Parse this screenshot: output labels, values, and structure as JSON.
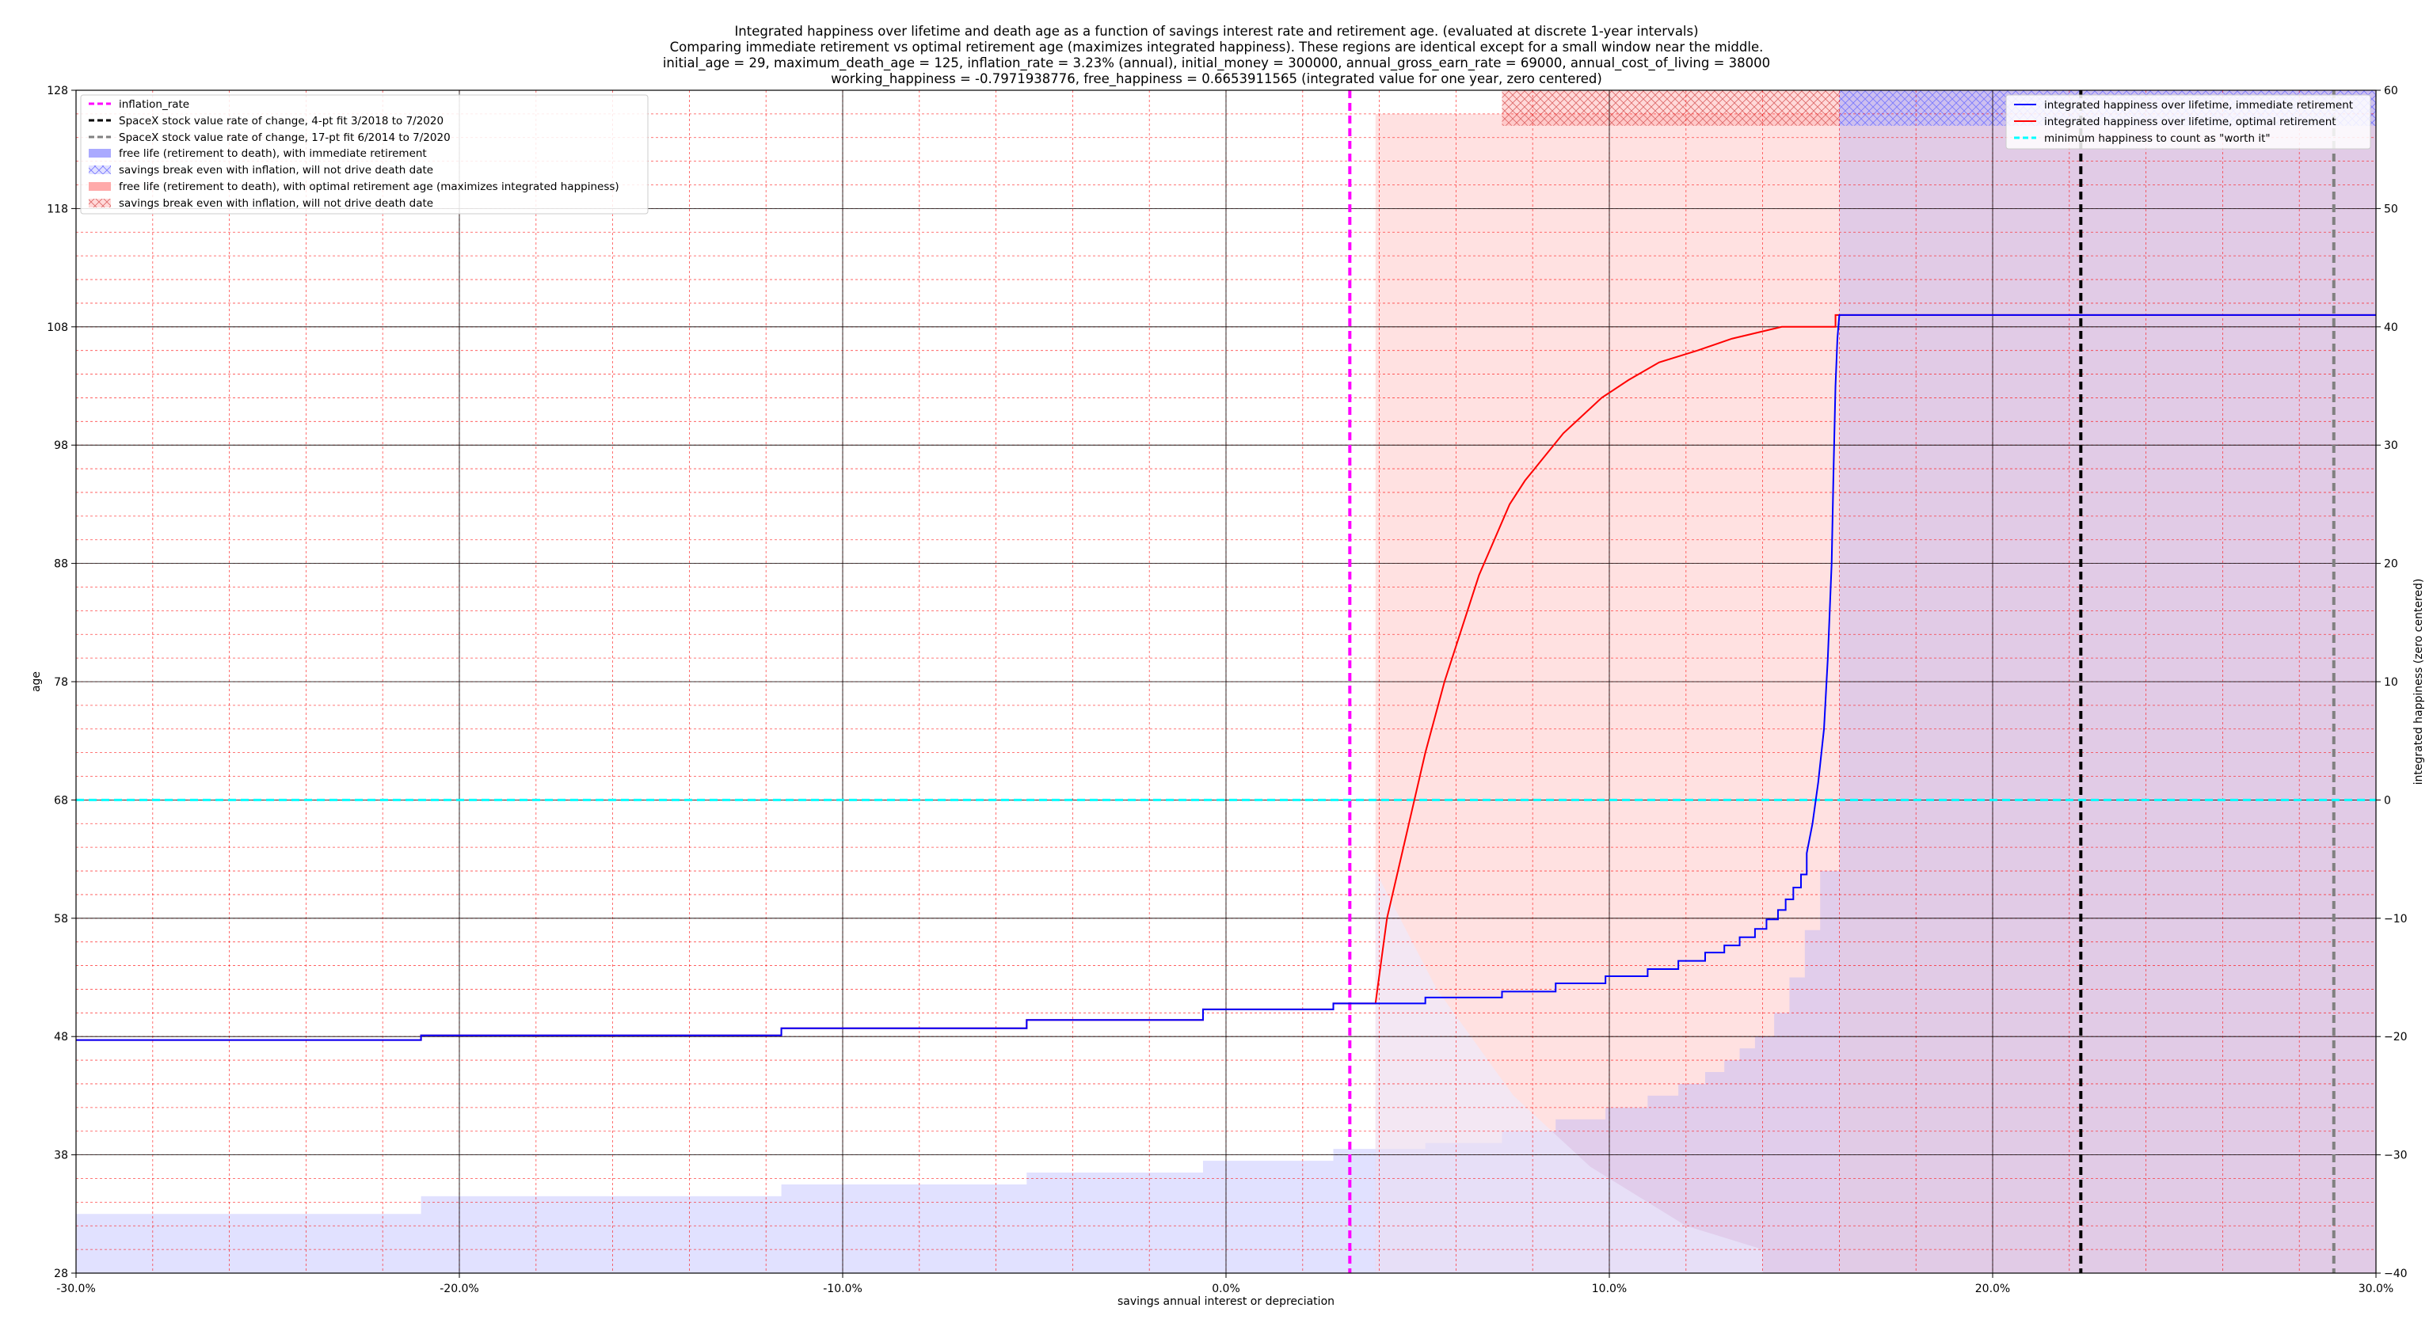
{
  "chart_data": {
    "type": "line",
    "title_lines": [
      "Integrated happiness over lifetime and death age as a function of savings interest rate and retirement age. (evaluated at discrete 1-year intervals)",
      "Comparing immediate retirement vs optimal retirement age (maximizes integrated happiness). These regions are identical except for a small window near the middle.",
      "initial_age = 29, maximum_death_age = 125, inflation_rate = 3.23% (annual), initial_money = 300000, annual_gross_earn_rate = 69000, annual_cost_of_living = 38000",
      "working_happiness = -0.7971938776, free_happiness = 0.6653911565 (integrated value for one year, zero centered)"
    ],
    "xlabel": "savings annual interest or depreciation",
    "ylabel_left": "age",
    "ylabel_right": "integrated happiness (zero centered)",
    "xlim": [
      -30,
      30
    ],
    "ylim_left": [
      28,
      128
    ],
    "ylim_right": [
      -40,
      60
    ],
    "x_ticks": [
      "-30.0%",
      "-20.0%",
      "-10.0%",
      "0.0%",
      "10.0%",
      "20.0%",
      "30.0%"
    ],
    "x_tick_values": [
      -30,
      -20,
      -10,
      0,
      10,
      20,
      30
    ],
    "y_left_ticks": [
      "28",
      "38",
      "48",
      "58",
      "68",
      "78",
      "88",
      "98",
      "108",
      "118",
      "128"
    ],
    "y_right_ticks": [
      "−40",
      "−30",
      "−20",
      "−10",
      "0",
      "10",
      "20",
      "30",
      "40",
      "50",
      "60"
    ],
    "grid": true,
    "vertical_lines": [
      {
        "name": "inflation_rate",
        "x": 3.23,
        "color": "#ff00ff",
        "style": "dashed"
      },
      {
        "name": "SpaceX stock value rate of change, 4-pt fit 3/2018 to 7/2020",
        "x": 22.3,
        "color": "#000000",
        "style": "dashed"
      },
      {
        "name": "SpaceX stock value rate of change, 17-pt fit 6/2014 to 7/2020",
        "x": 28.9,
        "color": "#808080",
        "style": "dashed"
      }
    ],
    "horizontal_lines": [
      {
        "name": "minimum happiness to count as \"worth it\"",
        "y_right": 0,
        "color": "#00ffff",
        "style": "dashed"
      }
    ],
    "regions": [
      {
        "name": "free life (retirement to death), with immediate retirement",
        "color": "#aaaaff"
      },
      {
        "name": "savings break even with inflation, will not drive death date",
        "color": "#aaaaff",
        "hatch": true
      },
      {
        "name": "free life (retirement to death), with optimal retirement age (maximizes integrated happiness)",
        "color": "#ffaaaa"
      },
      {
        "name": "savings break even with inflation, will not drive death date",
        "color": "#ffaaaa",
        "hatch": true
      }
    ],
    "series": [
      {
        "name": "integrated happiness over lifetime, immediate retirement",
        "color": "#0000ff",
        "x": [
          -30,
          -21,
          -21,
          -11.6,
          -11.6,
          -5.2,
          -5.2,
          -0.6,
          -0.6,
          2.8,
          2.8,
          5.2,
          5.2,
          7.2,
          7.2,
          8.6,
          8.6,
          9.9,
          9.9,
          11.0,
          11.0,
          11.8,
          11.8,
          12.5,
          12.5,
          13.0,
          13.0,
          13.4,
          13.4,
          13.8,
          13.8,
          14.1,
          14.1,
          14.4,
          14.4,
          14.6,
          14.6,
          14.8,
          14.8,
          15.0,
          15.0,
          15.15,
          15.15,
          15.3,
          15.45,
          15.6,
          15.7,
          15.8,
          15.85,
          15.9,
          15.95,
          16.0,
          30
        ],
        "y_right": [
          -20.3,
          -20.3,
          -19.9,
          -19.9,
          -19.3,
          -19.3,
          -18.6,
          -18.6,
          -17.7,
          -17.7,
          -17.2,
          -17.2,
          -16.7,
          -16.7,
          -16.2,
          -16.2,
          -15.5,
          -15.5,
          -14.9,
          -14.9,
          -14.3,
          -14.3,
          -13.6,
          -13.6,
          -12.9,
          -12.9,
          -12.3,
          -12.3,
          -11.6,
          -11.6,
          -10.9,
          -10.9,
          -10.1,
          -10.1,
          -9.3,
          -9.3,
          -8.4,
          -8.4,
          -7.4,
          -7.4,
          -6.3,
          -6.3,
          -4.5,
          -2.0,
          1.5,
          6.0,
          12.0,
          20.0,
          28.0,
          35.0,
          39.0,
          41.0,
          41.0
        ]
      },
      {
        "name": "integrated happiness over lifetime, optimal retirement",
        "color": "#ff0000",
        "x": [
          -30,
          -21,
          -21,
          -11.6,
          -11.6,
          -5.2,
          -5.2,
          -0.6,
          -0.6,
          2.8,
          2.8,
          3.9,
          4.2,
          4.7,
          5.2,
          5.7,
          6.2,
          6.6,
          7.0,
          7.4,
          7.8,
          8.3,
          8.8,
          9.3,
          9.8,
          10.5,
          11.3,
          12.3,
          13.2,
          14.5,
          15.9,
          15.9,
          30
        ],
        "y_right": [
          -20.3,
          -20.3,
          -19.9,
          -19.9,
          -19.3,
          -19.3,
          -18.6,
          -18.6,
          -17.7,
          -17.7,
          -17.2,
          -17.2,
          -10.0,
          -3.0,
          4.0,
          10.0,
          15.0,
          19.0,
          22.0,
          25.0,
          27.0,
          29.0,
          31.0,
          32.5,
          34.0,
          35.5,
          37.0,
          38.0,
          39.0,
          40.0,
          40.0,
          41.0,
          41.0
        ]
      }
    ],
    "legend_left_entries": [
      "inflation_rate",
      "SpaceX stock value rate of change, 4-pt fit 3/2018 to 7/2020",
      "SpaceX stock value rate of change, 17-pt fit 6/2014 to 7/2020",
      "free life (retirement to death), with immediate retirement",
      "savings break even with inflation, will not drive death date",
      "free life (retirement to death), with optimal retirement age (maximizes integrated happiness)",
      "savings break even with inflation, will not drive death date"
    ],
    "legend_right_entries": [
      "integrated happiness over lifetime, immediate retirement",
      "integrated happiness over lifetime, optimal retirement",
      "minimum happiness to count as \"worth it\""
    ],
    "legend_left_placement": "upper-left",
    "legend_right_placement": "upper-right"
  }
}
